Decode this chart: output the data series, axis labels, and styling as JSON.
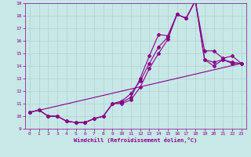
{
  "title": "",
  "xlabel": "Windchill (Refroidissement éolien,°C)",
  "xlim": [
    -0.5,
    23.5
  ],
  "ylim": [
    9,
    19
  ],
  "xticks": [
    0,
    1,
    2,
    3,
    4,
    5,
    6,
    7,
    8,
    9,
    10,
    11,
    12,
    13,
    14,
    15,
    16,
    17,
    18,
    19,
    20,
    21,
    22,
    23
  ],
  "yticks": [
    9,
    10,
    11,
    12,
    13,
    14,
    15,
    16,
    17,
    18,
    19
  ],
  "bg_color": "#c8e8e8",
  "grid_color": "#b0d0d0",
  "line_color": "#880088",
  "curve1_x": [
    0,
    1,
    2,
    3,
    4,
    5,
    6,
    7,
    8,
    9,
    10,
    11,
    12,
    13,
    14,
    15,
    16,
    17,
    18,
    19,
    20,
    21,
    22,
    23
  ],
  "curve1_y": [
    10.3,
    10.5,
    10.0,
    10.0,
    9.6,
    9.5,
    9.5,
    9.8,
    10.0,
    11.0,
    11.1,
    11.5,
    13.0,
    14.8,
    16.5,
    16.4,
    18.1,
    17.8,
    19.2,
    15.2,
    15.2,
    14.6,
    14.8,
    14.2
  ],
  "curve2_x": [
    0,
    1,
    2,
    3,
    4,
    5,
    6,
    7,
    8,
    9,
    10,
    11,
    12,
    13,
    14,
    15,
    16,
    17,
    18,
    19,
    20,
    21,
    22,
    23
  ],
  "curve2_y": [
    10.3,
    10.5,
    10.0,
    10.0,
    9.6,
    9.5,
    9.5,
    9.8,
    10.0,
    11.0,
    11.2,
    11.8,
    12.8,
    14.2,
    15.5,
    16.3,
    18.1,
    17.8,
    19.2,
    14.5,
    14.3,
    14.5,
    14.3,
    14.2
  ],
  "curve3_x": [
    0,
    1,
    2,
    3,
    4,
    5,
    6,
    7,
    8,
    9,
    10,
    11,
    12,
    13,
    14,
    15,
    16,
    17,
    18,
    19,
    20,
    21,
    22,
    23
  ],
  "curve3_y": [
    10.3,
    10.5,
    10.0,
    10.0,
    9.6,
    9.5,
    9.5,
    9.8,
    10.0,
    11.0,
    11.0,
    11.3,
    12.3,
    13.8,
    15.0,
    16.1,
    18.1,
    17.8,
    19.2,
    14.5,
    14.0,
    14.5,
    14.2,
    14.2
  ],
  "line_x": [
    0,
    23
  ],
  "line_y": [
    10.3,
    14.2
  ]
}
